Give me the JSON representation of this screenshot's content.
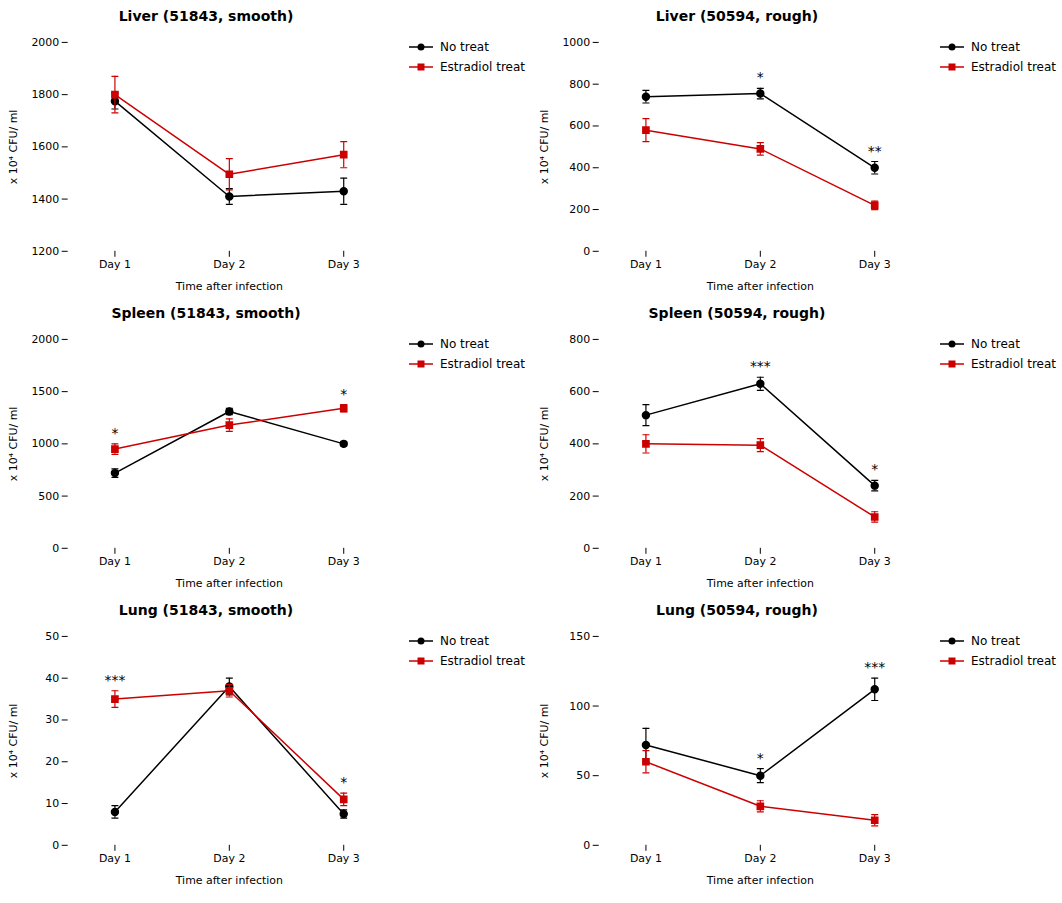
{
  "chart_data": [
    {
      "type": "line",
      "title": "Liver (51843, smooth)",
      "xlabel": "Time after infection",
      "ylabel": "x 10⁴ CFU/ ml",
      "categories": [
        "Day 1",
        "Day 2",
        "Day 3"
      ],
      "series": [
        {
          "name": "No treat",
          "color": "#000000",
          "marker": "circle",
          "values": [
            1775,
            1410,
            1430
          ],
          "errors": [
            30,
            30,
            50
          ]
        },
        {
          "name": "Estradiol treat",
          "color": "#cc0000",
          "marker": "square",
          "values": [
            1800,
            1495,
            1570
          ],
          "errors": [
            70,
            60,
            50
          ]
        }
      ],
      "ylim": [
        1200,
        2000
      ],
      "yticks": [
        1200,
        1400,
        1600,
        1800,
        2000
      ],
      "grid": false,
      "legend": "right",
      "annotations": []
    },
    {
      "type": "line",
      "title": "Liver (50594, rough)",
      "xlabel": "Time after infection",
      "ylabel": "x 10⁴ CFU/ ml",
      "categories": [
        "Day 1",
        "Day 2",
        "Day 3"
      ],
      "series": [
        {
          "name": "No treat",
          "color": "#000000",
          "marker": "circle",
          "values": [
            740,
            755,
            400
          ],
          "errors": [
            30,
            25,
            30
          ]
        },
        {
          "name": "Estradiol treat",
          "color": "#cc0000",
          "marker": "square",
          "values": [
            580,
            490,
            220
          ],
          "errors": [
            55,
            30,
            20
          ]
        }
      ],
      "ylim": [
        0,
        1000
      ],
      "yticks": [
        0,
        200,
        400,
        600,
        800,
        1000
      ],
      "grid": false,
      "legend": "right",
      "annotations": [
        {
          "text": "*",
          "x": "Day 2",
          "series": "No treat"
        },
        {
          "text": "**",
          "x": "Day 3",
          "series": "No treat"
        }
      ]
    },
    {
      "type": "line",
      "title": "Spleen (51843, smooth)",
      "xlabel": "Time after infection",
      "ylabel": "x 10⁴ CFU/ ml",
      "categories": [
        "Day 1",
        "Day 2",
        "Day 3"
      ],
      "series": [
        {
          "name": "No treat",
          "color": "#000000",
          "marker": "circle",
          "values": [
            720,
            1310,
            1000
          ],
          "errors": [
            40,
            30,
            20
          ]
        },
        {
          "name": "Estradiol treat",
          "color": "#cc0000",
          "marker": "square",
          "values": [
            950,
            1180,
            1340
          ],
          "errors": [
            50,
            60,
            35
          ]
        }
      ],
      "ylim": [
        0,
        2000
      ],
      "yticks": [
        0,
        500,
        1000,
        1500,
        2000
      ],
      "grid": false,
      "legend": "right",
      "annotations": [
        {
          "text": "*",
          "x": "Day 1",
          "series": "Estradiol treat"
        },
        {
          "text": "*",
          "x": "Day 3",
          "series": "Estradiol treat"
        }
      ]
    },
    {
      "type": "line",
      "title": "Spleen (50594, rough)",
      "xlabel": "Time after infection",
      "ylabel": "x 10⁴ CFU/ ml",
      "categories": [
        "Day 1",
        "Day 2",
        "Day 3"
      ],
      "series": [
        {
          "name": "No treat",
          "color": "#000000",
          "marker": "circle",
          "values": [
            510,
            630,
            240
          ],
          "errors": [
            40,
            25,
            20
          ]
        },
        {
          "name": "Estradiol treat",
          "color": "#cc0000",
          "marker": "square",
          "values": [
            400,
            395,
            120
          ],
          "errors": [
            35,
            25,
            20
          ]
        }
      ],
      "ylim": [
        0,
        800
      ],
      "yticks": [
        0,
        200,
        400,
        600,
        800
      ],
      "grid": false,
      "legend": "right",
      "annotations": [
        {
          "text": "***",
          "x": "Day 2",
          "series": "No treat"
        },
        {
          "text": "*",
          "x": "Day 3",
          "series": "No treat"
        }
      ]
    },
    {
      "type": "line",
      "title": "Lung (51843, smooth)",
      "xlabel": "Time after infection",
      "ylabel": "x 10⁴ CFU/ ml",
      "categories": [
        "Day 1",
        "Day 2",
        "Day 3"
      ],
      "series": [
        {
          "name": "No treat",
          "color": "#000000",
          "marker": "circle",
          "values": [
            8,
            38,
            7.5
          ],
          "errors": [
            1.5,
            2,
            1
          ]
        },
        {
          "name": "Estradiol treat",
          "color": "#cc0000",
          "marker": "square",
          "values": [
            35,
            37,
            11
          ],
          "errors": [
            2,
            1.5,
            1.5
          ]
        }
      ],
      "ylim": [
        0,
        50
      ],
      "yticks": [
        0,
        10,
        20,
        30,
        40,
        50
      ],
      "grid": false,
      "legend": "right",
      "annotations": [
        {
          "text": "***",
          "x": "Day 1",
          "series": "Estradiol treat"
        },
        {
          "text": "*",
          "x": "Day 3",
          "series": "Estradiol treat"
        }
      ]
    },
    {
      "type": "line",
      "title": "Lung (50594, rough)",
      "xlabel": "Time after infection",
      "ylabel": "x 10⁴ CFU/ ml",
      "categories": [
        "Day 1",
        "Day 2",
        "Day 3"
      ],
      "series": [
        {
          "name": "No treat",
          "color": "#000000",
          "marker": "circle",
          "values": [
            72,
            50,
            112
          ],
          "errors": [
            12,
            5,
            8
          ]
        },
        {
          "name": "Estradiol treat",
          "color": "#cc0000",
          "marker": "square",
          "values": [
            60,
            28,
            18
          ],
          "errors": [
            8,
            4,
            4
          ]
        }
      ],
      "ylim": [
        0,
        150
      ],
      "yticks": [
        0,
        50,
        100,
        150
      ],
      "grid": false,
      "legend": "right",
      "annotations": [
        {
          "text": "*",
          "x": "Day 2",
          "series": "No treat"
        },
        {
          "text": "***",
          "x": "Day 3",
          "series": "No treat"
        }
      ]
    }
  ]
}
